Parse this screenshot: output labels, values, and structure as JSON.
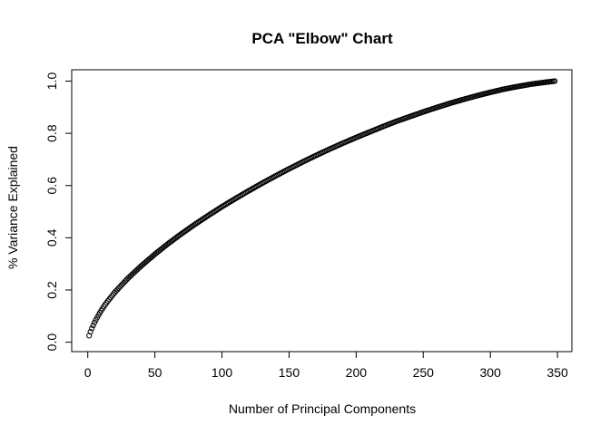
{
  "chart_data": {
    "type": "scatter",
    "title": "PCA \"Elbow\" Chart",
    "xlabel": "Number of Principal Components",
    "ylabel": "% Variance Explained",
    "xlim": [
      0,
      350
    ],
    "ylim": [
      0.0,
      1.0
    ],
    "x_ticks": [
      0,
      50,
      100,
      150,
      200,
      250,
      300,
      350
    ],
    "y_ticks": [
      0.0,
      0.2,
      0.4,
      0.6,
      0.8,
      1.0
    ],
    "x_tick_labels": [
      "0",
      "50",
      "100",
      "150",
      "200",
      "250",
      "300",
      "350"
    ],
    "y_tick_labels": [
      "0.0",
      "0.2",
      "0.4",
      "0.6",
      "0.8",
      "1.0"
    ],
    "grid": false,
    "marker": "open-circle",
    "n_points": 348,
    "series": [
      {
        "name": "",
        "x": [
          1,
          2,
          3,
          4,
          5,
          6,
          8,
          10,
          12,
          15,
          20,
          25,
          30,
          40,
          50,
          60,
          70,
          80,
          90,
          100,
          110,
          120,
          130,
          140,
          150,
          160,
          170,
          180,
          190,
          200,
          210,
          220,
          230,
          240,
          250,
          260,
          270,
          280,
          290,
          300,
          310,
          320,
          330,
          340,
          348
        ],
        "y": [
          0.025,
          0.04,
          0.053,
          0.064,
          0.075,
          0.085,
          0.104,
          0.121,
          0.137,
          0.158,
          0.19,
          0.218,
          0.245,
          0.293,
          0.337,
          0.378,
          0.416,
          0.452,
          0.486,
          0.519,
          0.55,
          0.58,
          0.609,
          0.637,
          0.664,
          0.69,
          0.715,
          0.739,
          0.762,
          0.784,
          0.805,
          0.826,
          0.846,
          0.864,
          0.882,
          0.899,
          0.915,
          0.93,
          0.944,
          0.957,
          0.969,
          0.979,
          0.988,
          0.995,
          1.0
        ]
      }
    ]
  }
}
